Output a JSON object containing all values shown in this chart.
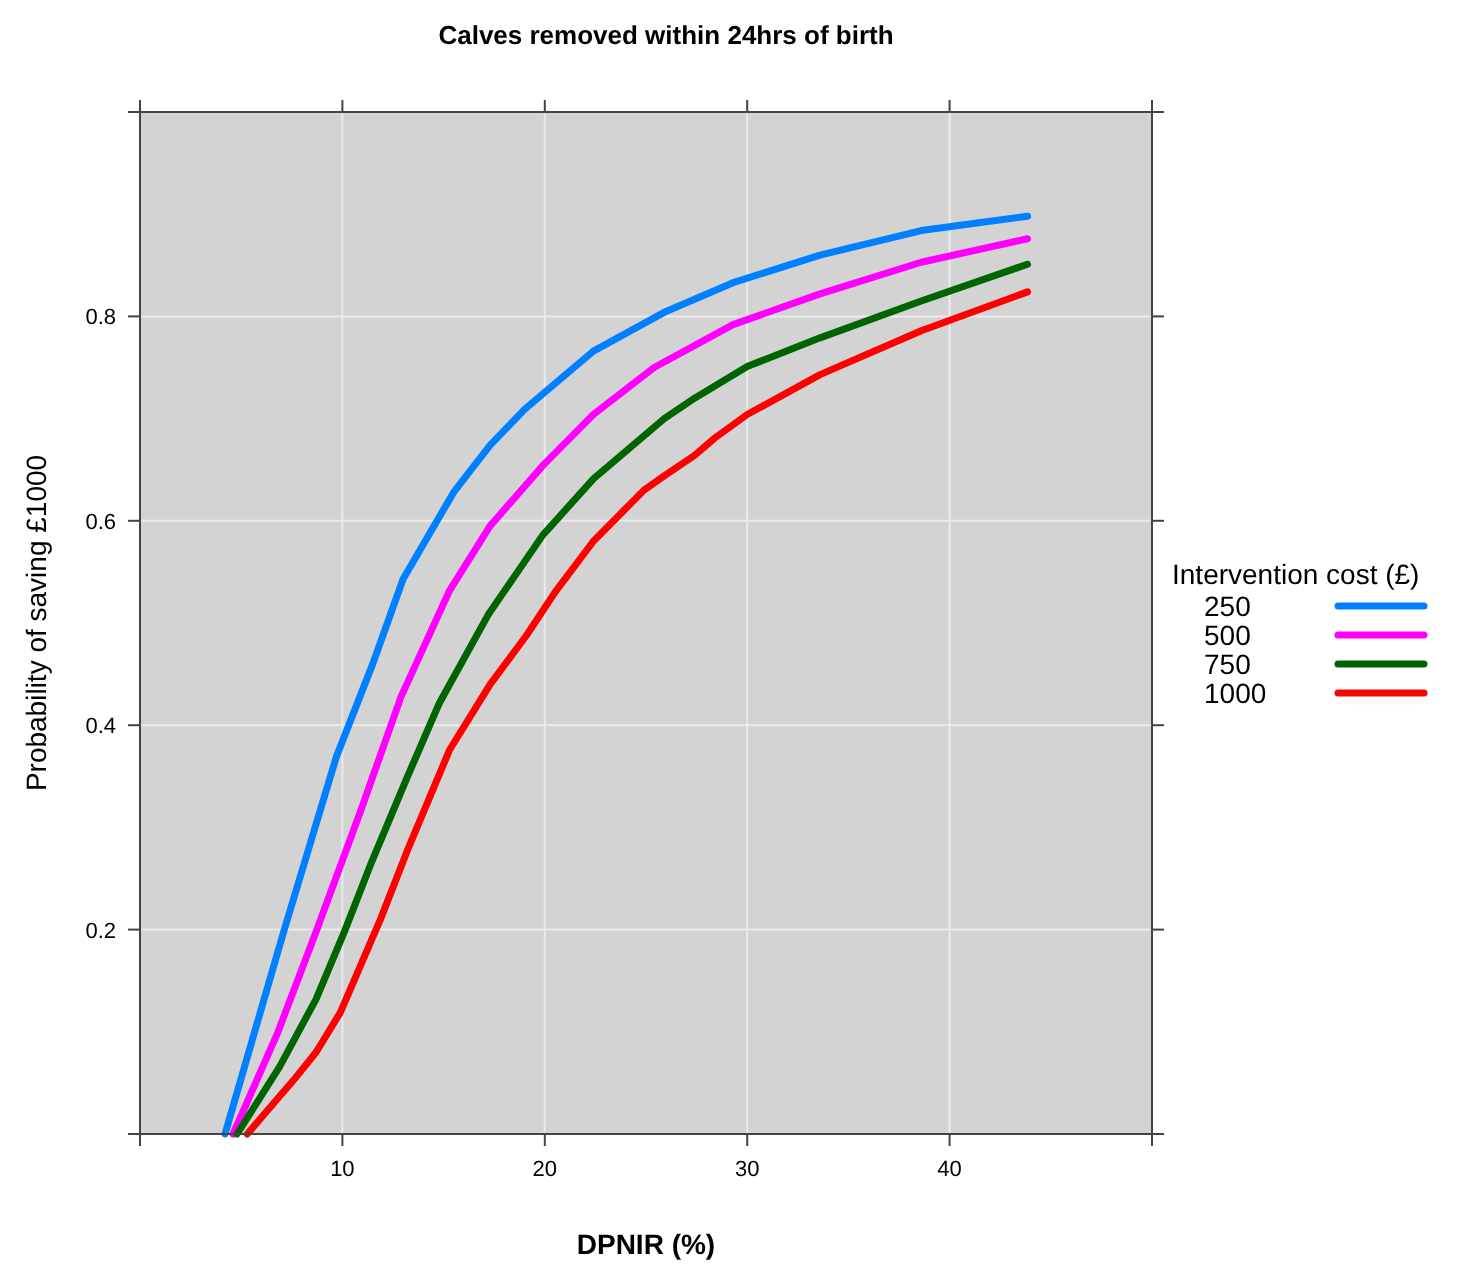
{
  "chart_data": {
    "type": "line",
    "title": "Calves removed within 24hrs of birth",
    "xlabel": "DPNIR (%)",
    "ylabel": "Probability of saving £1000",
    "legend_title": "Intervention cost (£)",
    "legend": "right",
    "grid": true,
    "marker": "none",
    "line_style": "solid",
    "xlim": [
      0,
      50
    ],
    "xticks": [
      {
        "value": 0,
        "label": null
      },
      10,
      20,
      30,
      40,
      {
        "value": 50,
        "label": null
      }
    ],
    "ylim": [
      0,
      1
    ],
    "yticks": [
      {
        "value": 0,
        "label": null
      },
      0.2,
      0.4,
      0.6,
      0.8,
      {
        "value": 1,
        "label": null
      }
    ],
    "series": [
      {
        "name": "250",
        "color": "#0080ff",
        "x": [
          4.2,
          7.1,
          9.7,
          11.5,
          13.0,
          15.5,
          17.3,
          19.0,
          22.4,
          25.9,
          29.3,
          33.6,
          38.6,
          43.85
        ],
        "values": [
          0,
          0.198,
          0.369,
          0.46,
          0.543,
          0.628,
          0.674,
          0.709,
          0.766,
          0.804,
          0.833,
          0.86,
          0.884,
          0.898
        ]
      },
      {
        "name": "500",
        "color": "#ff00ff",
        "x": [
          4.6,
          6.8,
          8.7,
          10.9,
          12.9,
          15.3,
          17.3,
          19.9,
          22.4,
          25.4,
          29.3,
          33.6,
          38.6,
          43.85
        ],
        "values": [
          0,
          0.099,
          0.198,
          0.316,
          0.428,
          0.532,
          0.595,
          0.654,
          0.704,
          0.75,
          0.792,
          0.822,
          0.853,
          0.876
        ]
      },
      {
        "name": "750",
        "color": "#006400",
        "x": [
          4.8,
          6.9,
          8.7,
          10.1,
          11.4,
          13.2,
          14.8,
          17.2,
          19.9,
          22.4,
          25.9,
          27.4,
          30.0,
          33.6,
          38.6,
          43.85
        ],
        "values": [
          0,
          0.066,
          0.132,
          0.198,
          0.264,
          0.349,
          0.422,
          0.508,
          0.586,
          0.641,
          0.7,
          0.72,
          0.751,
          0.779,
          0.815,
          0.851
        ]
      },
      {
        "name": "1000",
        "color": "#ff0000",
        "x": [
          5.3,
          7.6,
          8.7,
          9.9,
          11.9,
          13.2,
          15.3,
          17.3,
          19.1,
          20.5,
          22.4,
          24.9,
          25.9,
          27.4,
          28.4,
          30.0,
          33.6,
          38.6,
          43.85
        ],
        "values": [
          0,
          0.053,
          0.08,
          0.119,
          0.211,
          0.277,
          0.376,
          0.44,
          0.488,
          0.53,
          0.58,
          0.63,
          0.644,
          0.664,
          0.681,
          0.704,
          0.743,
          0.786,
          0.824
        ]
      }
    ]
  }
}
